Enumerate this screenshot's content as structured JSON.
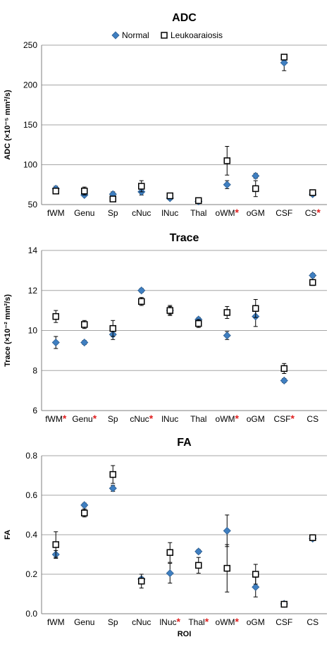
{
  "chart_data": [
    {
      "type": "scatter",
      "title": "ADC",
      "ylabel": "ADC (×10⁻⁵ mm²/s)",
      "ylim": [
        50,
        250
      ],
      "yticks": [
        "50",
        "100",
        "150",
        "200",
        "250"
      ],
      "grid": true,
      "legend": "top-center",
      "categories": [
        "fWM",
        "Genu",
        "Sp",
        "cNuc",
        "lNuc",
        "Thal",
        "oWM",
        "oGM",
        "CSF",
        "CS"
      ],
      "starred": [
        6,
        9
      ],
      "series": [
        {
          "name": "Normal",
          "values": [
            70,
            62,
            63,
            66,
            58,
            54,
            75,
            86,
            228,
            63
          ],
          "err": [
            3,
            2,
            3,
            4,
            2,
            2,
            5,
            3,
            10,
            2
          ]
        },
        {
          "name": "Leukoaraiosis",
          "values": [
            67,
            67,
            57,
            73,
            61,
            55,
            105,
            70,
            235,
            65
          ],
          "err": [
            3,
            5,
            3,
            7,
            3,
            2,
            18,
            10,
            3,
            2
          ]
        }
      ]
    },
    {
      "type": "scatter",
      "title": "Trace",
      "ylabel": "Trace (×10⁻² mm²/s)",
      "ylim": [
        6,
        14
      ],
      "yticks": [
        "6",
        "8",
        "10",
        "12",
        "14"
      ],
      "grid": true,
      "categories": [
        "fWM",
        "Genu",
        "Sp",
        "cNuc",
        "lNuc",
        "Thal",
        "oWM",
        "oGM",
        "CSF",
        "CS"
      ],
      "starred": [
        0,
        1,
        3,
        6,
        8
      ],
      "series": [
        {
          "name": "Normal",
          "values": [
            9.4,
            9.4,
            9.8,
            12.0,
            11.0,
            10.55,
            9.75,
            10.7,
            7.5,
            12.75
          ],
          "err": [
            0.3,
            0.1,
            0.25,
            0.1,
            0.2,
            0.1,
            0.2,
            0.5,
            0.1,
            0.1
          ]
        },
        {
          "name": "Leukoaraiosis",
          "values": [
            10.7,
            10.3,
            10.1,
            11.45,
            11.0,
            10.35,
            10.9,
            11.1,
            8.1,
            12.4
          ],
          "err": [
            0.3,
            0.2,
            0.4,
            0.2,
            0.25,
            0.2,
            0.3,
            0.45,
            0.25,
            0.15
          ]
        }
      ]
    },
    {
      "type": "scatter",
      "title": "FA",
      "xlabel": "ROI",
      "ylabel": "FA",
      "ylim": [
        0,
        0.8
      ],
      "yticks": [
        "0.0",
        "0.2",
        "0.4",
        "0.6",
        "0.8"
      ],
      "grid": true,
      "categories": [
        "fWM",
        "Genu",
        "Sp",
        "cNuc",
        "lNuc",
        "Thal",
        "oWM",
        "oGM",
        "CSF",
        "CS"
      ],
      "starred": [
        4,
        5,
        6
      ],
      "series": [
        {
          "name": "Normal",
          "values": [
            0.3,
            0.55,
            0.635,
            0.175,
            0.205,
            0.315,
            0.42,
            0.135,
            0.05,
            0.38
          ],
          "err": [
            0.02,
            0.01,
            0.015,
            0.01,
            0.05,
            0.01,
            0.08,
            0.05,
            0.01,
            0.01
          ]
        },
        {
          "name": "Leukoaraiosis",
          "values": [
            0.35,
            0.51,
            0.705,
            0.165,
            0.31,
            0.245,
            0.23,
            0.2,
            0.048,
            0.385
          ],
          "err": [
            0.065,
            0.02,
            0.045,
            0.035,
            0.05,
            0.04,
            0.12,
            0.05,
            0.01,
            0.01
          ]
        }
      ]
    }
  ]
}
